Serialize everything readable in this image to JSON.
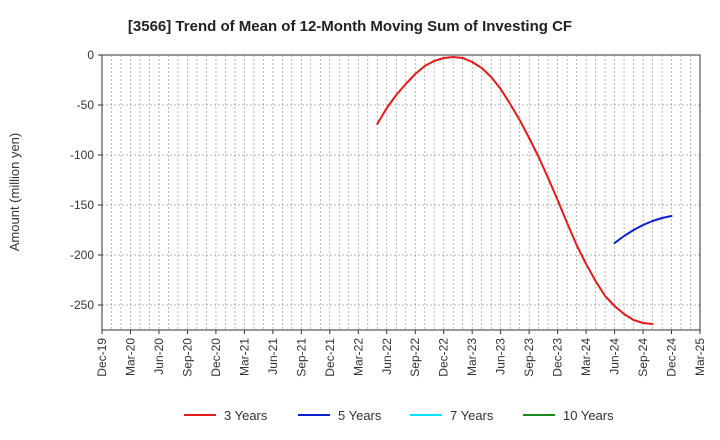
{
  "chart_data": {
    "type": "line",
    "title": "[3566]  Trend of Mean of 12-Month Moving Sum of Investing CF",
    "ylabel": "Amount (million yen)",
    "xlabel": "",
    "ylim": [
      -275,
      0
    ],
    "y_ticks": [
      0,
      -50,
      -100,
      -150,
      -200,
      -250
    ],
    "x_ticks": [
      "Dec-19",
      "Mar-20",
      "Jun-20",
      "Sep-20",
      "Dec-20",
      "Mar-21",
      "Jun-21",
      "Sep-21",
      "Dec-21",
      "Mar-22",
      "Jun-22",
      "Sep-22",
      "Dec-22",
      "Mar-23",
      "Jun-23",
      "Sep-23",
      "Dec-23",
      "Mar-24",
      "Jun-24",
      "Sep-24",
      "Dec-24",
      "Mar-25"
    ],
    "grid": true,
    "legend_position": "bottom",
    "series": [
      {
        "name": "3 Years",
        "color": "#e31a1c",
        "start": "May-22",
        "values": [
          -69,
          -53,
          -40,
          -29,
          -19,
          -11,
          -6,
          -3,
          -2,
          -3,
          -7,
          -13,
          -22,
          -34,
          -49,
          -65,
          -83,
          -102,
          -123,
          -145,
          -168,
          -190,
          -209,
          -226,
          -241,
          -251,
          -259,
          -265,
          -268,
          -269
        ]
      },
      {
        "name": "5 Years",
        "color": "#0b1fd1",
        "start": "Jun-24",
        "values": [
          -188,
          -181,
          -175,
          -170,
          -166,
          -163,
          -161
        ]
      },
      {
        "name": "7 Years",
        "color": "#00e5ff",
        "start": "",
        "values": []
      },
      {
        "name": "10 Years",
        "color": "#1a8a1a",
        "start": "",
        "values": []
      }
    ]
  }
}
